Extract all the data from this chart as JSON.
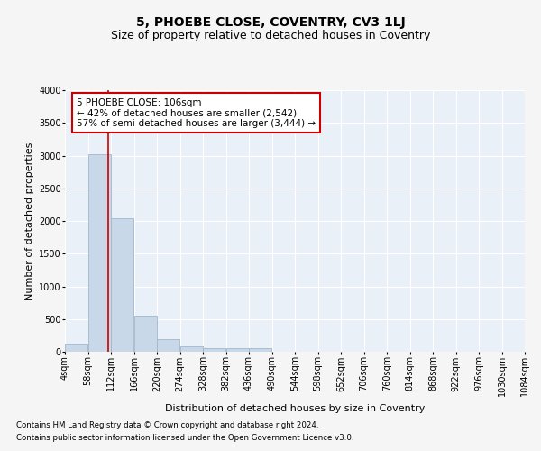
{
  "title": "5, PHOEBE CLOSE, COVENTRY, CV3 1LJ",
  "subtitle": "Size of property relative to detached houses in Coventry",
  "xlabel": "Distribution of detached houses by size in Coventry",
  "ylabel": "Number of detached properties",
  "bar_values": [
    130,
    3020,
    2040,
    550,
    200,
    80,
    60,
    50,
    50,
    0,
    0,
    0,
    0,
    0,
    0,
    0,
    0,
    0,
    0,
    0
  ],
  "bin_edges": [
    4,
    58,
    112,
    166,
    220,
    274,
    328,
    382,
    436,
    490,
    544,
    598,
    652,
    706,
    760,
    814,
    868,
    922,
    976,
    1030,
    1084
  ],
  "x_tick_labels": [
    "4sqm",
    "58sqm",
    "112sqm",
    "166sqm",
    "220sqm",
    "274sqm",
    "328sqm",
    "382sqm",
    "436sqm",
    "490sqm",
    "544sqm",
    "598sqm",
    "652sqm",
    "706sqm",
    "760sqm",
    "814sqm",
    "868sqm",
    "922sqm",
    "976sqm",
    "1030sqm",
    "1084sqm"
  ],
  "bar_color": "#c8d8e8",
  "bar_edgecolor": "#a0b8cc",
  "property_line_x": 106,
  "property_line_color": "#cc0000",
  "annotation_line1": "5 PHOEBE CLOSE: 106sqm",
  "annotation_line2": "← 42% of detached houses are smaller (2,542)",
  "annotation_line3": "57% of semi-detached houses are larger (3,444) →",
  "ylim": [
    0,
    4000
  ],
  "yticks": [
    0,
    500,
    1000,
    1500,
    2000,
    2500,
    3000,
    3500,
    4000
  ],
  "background_color": "#eaf0f8",
  "grid_color": "#ffffff",
  "fig_background": "#f5f5f5",
  "footer_line1": "Contains HM Land Registry data © Crown copyright and database right 2024.",
  "footer_line2": "Contains public sector information licensed under the Open Government Licence v3.0.",
  "title_fontsize": 10,
  "subtitle_fontsize": 9,
  "label_fontsize": 8,
  "tick_fontsize": 7,
  "annot_fontsize": 7.5
}
